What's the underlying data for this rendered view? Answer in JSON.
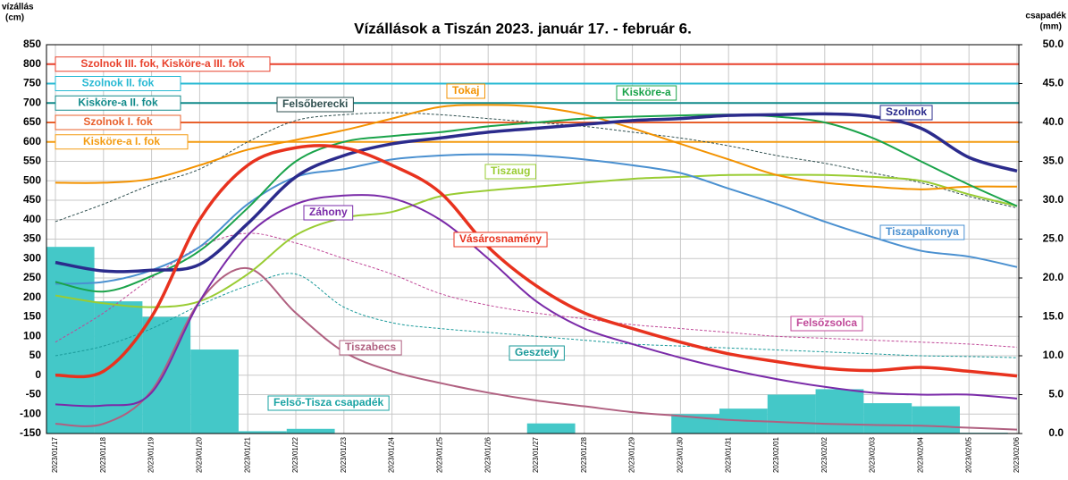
{
  "chart_data": {
    "type": "line",
    "title": "Vízállások a Tiszán  2023. január 17. - február 6.",
    "y_label": "vízállás",
    "y_unit": "(cm)",
    "y2_label": "csapadék",
    "y2_unit": "(mm)",
    "categories": [
      "2023/01/17",
      "2023/01/18",
      "2023/01/19",
      "2023/01/20",
      "2023/01/21",
      "2023/01/22",
      "2023/01/23",
      "2023/01/24",
      "2023/01/25",
      "2023/01/26",
      "2023/01/27",
      "2023/01/28",
      "2023/01/29",
      "2023/01/30",
      "2023/01/31",
      "2023/02/01",
      "2023/02/02",
      "2023/02/03",
      "2023/02/04",
      "2023/02/05",
      "2023/02/06"
    ],
    "ylim": [
      -150,
      850
    ],
    "yticks": [
      -150,
      -100,
      -50,
      0,
      50,
      100,
      150,
      200,
      250,
      300,
      350,
      400,
      450,
      500,
      550,
      600,
      650,
      700,
      750,
      800,
      850
    ],
    "y2lim": [
      0,
      50
    ],
    "y2ticks": [
      {
        "value": 0,
        "label": "0.0"
      },
      {
        "value": 5,
        "label": "5.0"
      },
      {
        "value": 10,
        "label": "10.0"
      },
      {
        "value": 15,
        "label": "15.0"
      },
      {
        "value": 20,
        "label": "20.0"
      },
      {
        "value": 25,
        "label": "25.0"
      },
      {
        "value": 30,
        "label": "30.0"
      },
      {
        "value": 35,
        "label": "35.0"
      },
      {
        "value": 40,
        "label": "40.0"
      },
      {
        "value": 45,
        "label": "45.0"
      },
      {
        "value": 50,
        "label": "50.0"
      }
    ],
    "grid": true,
    "bars": {
      "name": "Felső-Tisza csapadék",
      "color": "#44c8c8",
      "axis": "y2",
      "values": [
        24,
        17,
        15,
        10.8,
        0.3,
        0.6,
        0,
        0,
        0,
        0,
        1.3,
        0,
        0,
        2.5,
        3.2,
        5,
        5.7,
        3.9,
        3.5,
        0.1,
        0
      ]
    },
    "thresholds": [
      {
        "name": "Szolnok III. fok, Kisköre-a III. fok",
        "value": 800,
        "color": "#e8412c"
      },
      {
        "name": "Szolnok II. fok",
        "value": 750,
        "color": "#27b9d3"
      },
      {
        "name": "Kisköre-a II. fok",
        "value": 700,
        "color": "#108a8a"
      },
      {
        "name": "Szolnok I. fok",
        "value": 650,
        "color": "#e8602c"
      },
      {
        "name": "Kisköre-a I. fok",
        "value": 600,
        "color": "#f39c12"
      }
    ],
    "series": [
      {
        "name": "Szolnok",
        "color": "#2b2b8c",
        "thick": true,
        "values": [
          290,
          268,
          270,
          285,
          390,
          510,
          565,
          595,
          610,
          625,
          635,
          645,
          655,
          660,
          668,
          670,
          672,
          665,
          635,
          560,
          525
        ]
      },
      {
        "name": "Vásárosnamény",
        "color": "#e8321e",
        "thick": true,
        "values": [
          0,
          10,
          150,
          400,
          540,
          585,
          585,
          540,
          470,
          330,
          230,
          160,
          120,
          85,
          55,
          35,
          18,
          12,
          20,
          10,
          -2
        ]
      },
      {
        "name": "Tokaj",
        "color": "#f39200",
        "values": [
          495,
          495,
          505,
          540,
          580,
          605,
          630,
          660,
          690,
          695,
          690,
          670,
          635,
          595,
          555,
          515,
          495,
          485,
          478,
          485,
          485
        ]
      },
      {
        "name": "Kisköre-a",
        "color": "#1aa34a",
        "values": [
          240,
          215,
          255,
          320,
          430,
          550,
          600,
          615,
          625,
          640,
          650,
          660,
          665,
          668,
          670,
          665,
          650,
          610,
          550,
          490,
          435
        ]
      },
      {
        "name": "Tiszapalkonya",
        "color": "#4a90d0",
        "values": [
          235,
          240,
          270,
          330,
          440,
          510,
          530,
          555,
          565,
          568,
          565,
          555,
          540,
          520,
          480,
          440,
          395,
          355,
          320,
          305,
          278
        ]
      },
      {
        "name": "Tiszaug",
        "color": "#99cc33",
        "values": [
          205,
          185,
          175,
          190,
          260,
          360,
          405,
          420,
          460,
          475,
          485,
          495,
          505,
          510,
          515,
          515,
          515,
          510,
          500,
          465,
          435
        ]
      },
      {
        "name": "Záhony",
        "color": "#7a2aa8",
        "values": [
          -75,
          -78,
          -45,
          190,
          360,
          440,
          462,
          455,
          400,
          300,
          190,
          120,
          80,
          45,
          15,
          -10,
          -30,
          -45,
          -50,
          -50,
          -60
        ]
      },
      {
        "name": "Felsőberecki",
        "color": "#2f4f4f",
        "dashed": true,
        "values": [
          395,
          440,
          490,
          530,
          600,
          655,
          670,
          675,
          670,
          660,
          650,
          640,
          625,
          610,
          590,
          565,
          545,
          520,
          495,
          460,
          430
        ]
      },
      {
        "name": "Felsőzsolca",
        "color": "#c04898",
        "dashed": true,
        "values": [
          85,
          160,
          250,
          330,
          365,
          340,
          300,
          260,
          210,
          180,
          160,
          145,
          130,
          120,
          110,
          100,
          95,
          90,
          85,
          80,
          72
        ]
      },
      {
        "name": "Gesztely",
        "color": "#1a9a9a",
        "dashed": true,
        "values": [
          50,
          75,
          120,
          180,
          230,
          260,
          175,
          135,
          120,
          110,
          100,
          90,
          80,
          75,
          70,
          65,
          60,
          55,
          50,
          48,
          45
        ]
      },
      {
        "name": "Tiszabecs",
        "color": "#b06080",
        "values": [
          -125,
          -125,
          -40,
          190,
          275,
          160,
          60,
          10,
          -20,
          -45,
          -65,
          -80,
          -95,
          -105,
          -115,
          -120,
          -125,
          -128,
          -130,
          -135,
          -140
        ]
      }
    ]
  }
}
